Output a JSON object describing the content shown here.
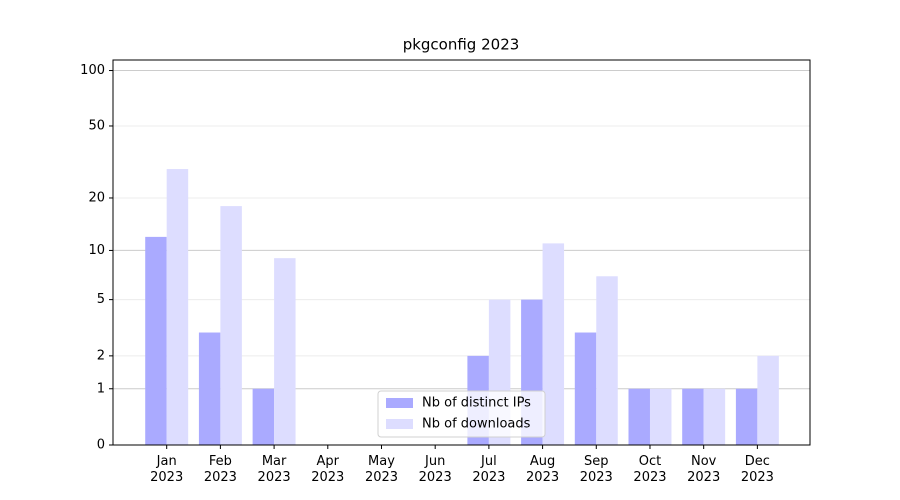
{
  "chart_data": {
    "type": "bar",
    "title": "pkgconfig 2023",
    "categories": [
      "Jan 2023",
      "Feb 2023",
      "Mar 2023",
      "Apr 2023",
      "May 2023",
      "Jun 2023",
      "Jul 2023",
      "Aug 2023",
      "Sep 2023",
      "Oct 2023",
      "Nov 2023",
      "Dec 2023"
    ],
    "series": [
      {
        "name": "Nb of distinct IPs",
        "color": "#aaaaff",
        "values": [
          12,
          3,
          1,
          0,
          0,
          0,
          2,
          5,
          3,
          1,
          1,
          1
        ]
      },
      {
        "name": "Nb of downloads",
        "color": "#ddddff",
        "values": [
          29,
          18,
          9,
          0,
          0,
          0,
          5,
          11,
          7,
          1,
          1,
          2
        ]
      }
    ],
    "yscale": "log1p",
    "ylim": [
      0,
      114
    ],
    "yticks": [
      0,
      1,
      2,
      5,
      10,
      20,
      50,
      100
    ],
    "grid": true,
    "legend": "lower center"
  }
}
